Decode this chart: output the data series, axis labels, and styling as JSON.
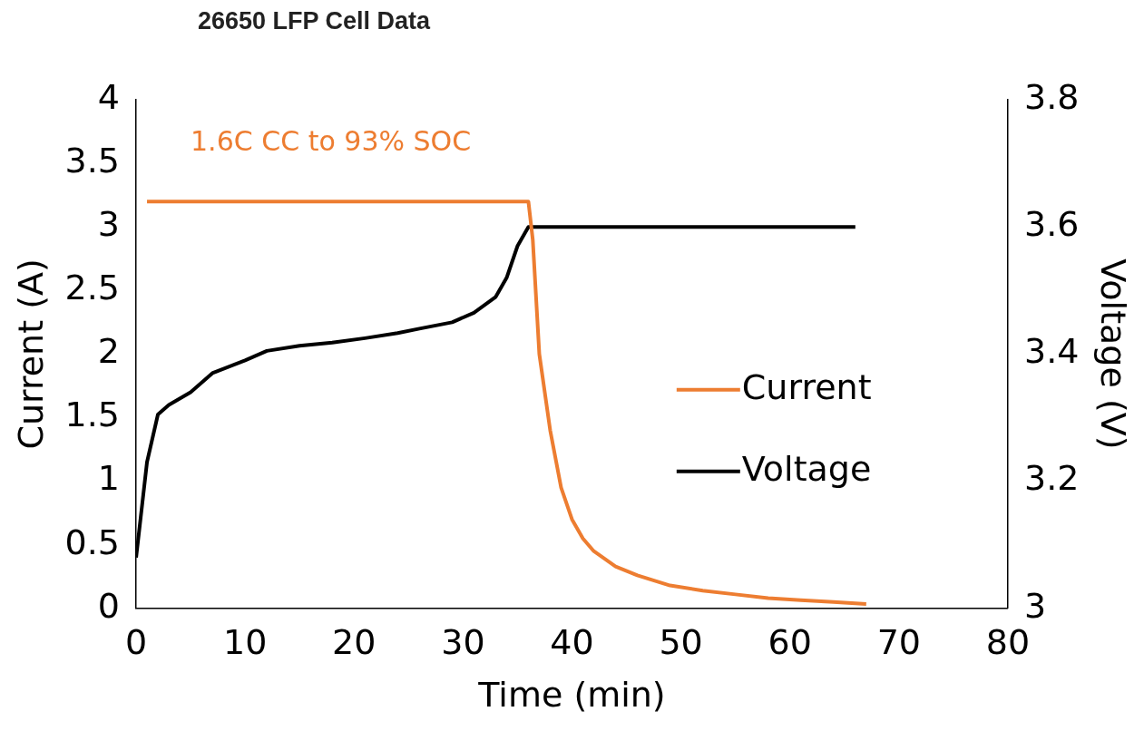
{
  "chart_data": {
    "type": "line",
    "title": "26650 LFP Cell Data",
    "xlabel": "Time (min)",
    "ylabel": "Current (A)",
    "y2label": "Voltage (V)",
    "annotations": [
      "1.6C CC to 93% SOC"
    ],
    "series": [
      {
        "name": "Current",
        "color": "#ed7d31",
        "x": [
          1,
          10,
          20,
          30,
          35,
          36,
          36.4,
          37,
          38,
          39,
          40,
          41,
          42,
          44,
          46,
          49,
          52,
          55,
          58,
          61,
          64,
          67
        ],
        "values": [
          3.2,
          3.2,
          3.2,
          3.2,
          3.2,
          3.2,
          2.9,
          2.0,
          1.4,
          0.95,
          0.7,
          0.55,
          0.45,
          0.33,
          0.26,
          0.18,
          0.14,
          0.11,
          0.08,
          0.065,
          0.05,
          0.035
        ]
      },
      {
        "name": "Voltage",
        "color": "#000000",
        "axis": "y2",
        "x": [
          0,
          1,
          2,
          3,
          5,
          7,
          10,
          12,
          15,
          18,
          21,
          24,
          26,
          29,
          31,
          33,
          34,
          35,
          36,
          66
        ],
        "values": [
          3.08,
          3.23,
          3.305,
          3.32,
          3.34,
          3.37,
          3.39,
          3.405,
          3.413,
          3.418,
          3.425,
          3.433,
          3.44,
          3.45,
          3.465,
          3.49,
          3.52,
          3.57,
          3.6,
          3.6
        ]
      }
    ],
    "xlim": [
      0,
      80
    ],
    "xticks": [
      0,
      10,
      20,
      30,
      40,
      50,
      60,
      70,
      80
    ],
    "ylim": [
      0,
      4
    ],
    "yticks": [
      0,
      0.5,
      1,
      1.5,
      2,
      2.5,
      3,
      3.5,
      4
    ],
    "y2lim": [
      3,
      3.8
    ],
    "y2ticks": [
      3,
      3.2,
      3.4,
      3.6,
      3.8
    ],
    "legend": "right",
    "marker": "none",
    "line_style": "solid"
  }
}
